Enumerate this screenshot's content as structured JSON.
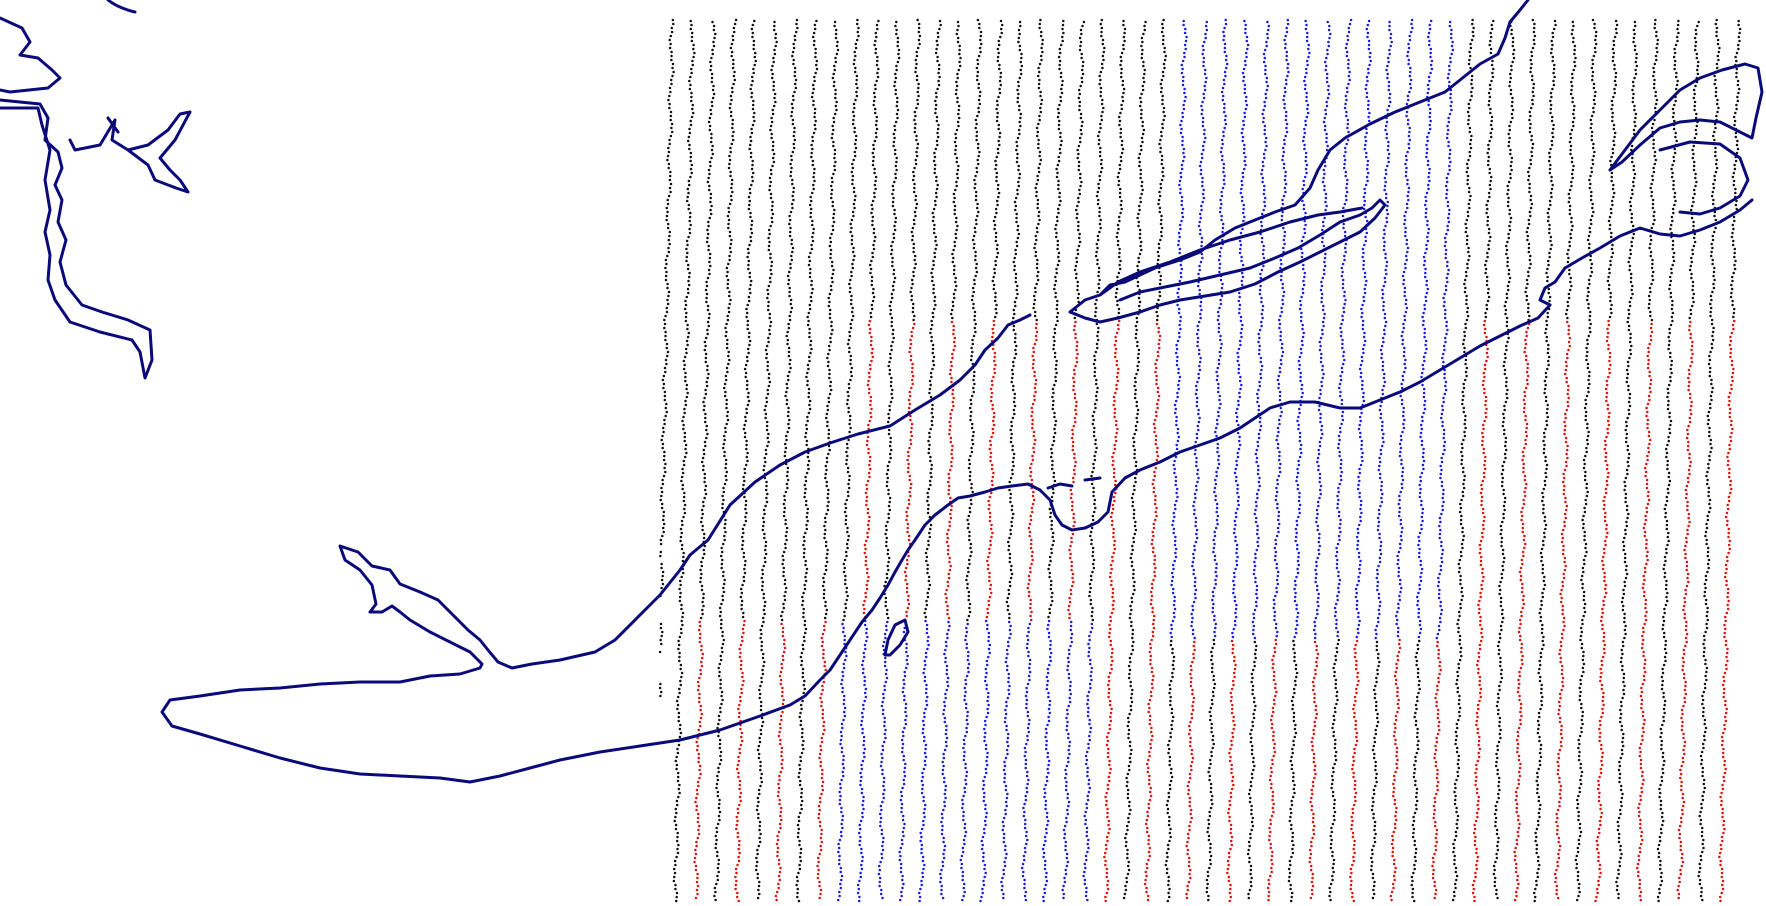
{
  "map": {
    "background_color": "#ffffff",
    "coastline_color": "#0a0a7a",
    "track_colors": {
      "neutral": "#111111",
      "positive": "#e01010",
      "negative": "#1a1ae6"
    },
    "layers": [
      {
        "name": "coastline",
        "kind": "line"
      },
      {
        "name": "survey-tracks",
        "kind": "dotted-lines"
      }
    ]
  }
}
